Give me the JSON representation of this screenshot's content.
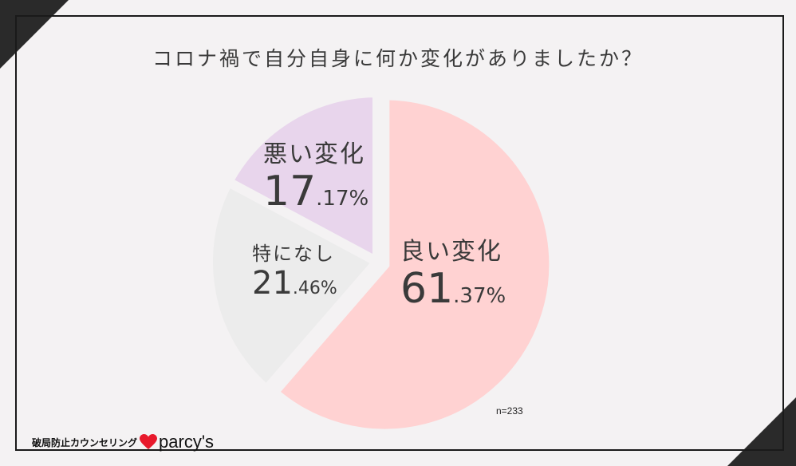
{
  "title": "コロナ禍で自分自身に何か変化がありましたか？",
  "sample_size": "n=233",
  "brand": {
    "company": "破局防止カウンセリング",
    "logo_text": "parcy's",
    "heart_color": "#e8192c"
  },
  "chart_data": {
    "type": "pie",
    "title": "コロナ禍で自分自身に何か変化がありましたか？",
    "slices": [
      {
        "label": "良い変化",
        "value": 61.37,
        "int_part": "61",
        "dec_part": ".37%",
        "color": "#ffd2d2"
      },
      {
        "label": "特になし",
        "value": 21.46,
        "int_part": "21",
        "dec_part": ".46%",
        "color": "#ececec"
      },
      {
        "label": "悪い変化",
        "value": 17.17,
        "int_part": "17",
        "dec_part": ".17%",
        "color": "#e8d5ec"
      }
    ]
  }
}
